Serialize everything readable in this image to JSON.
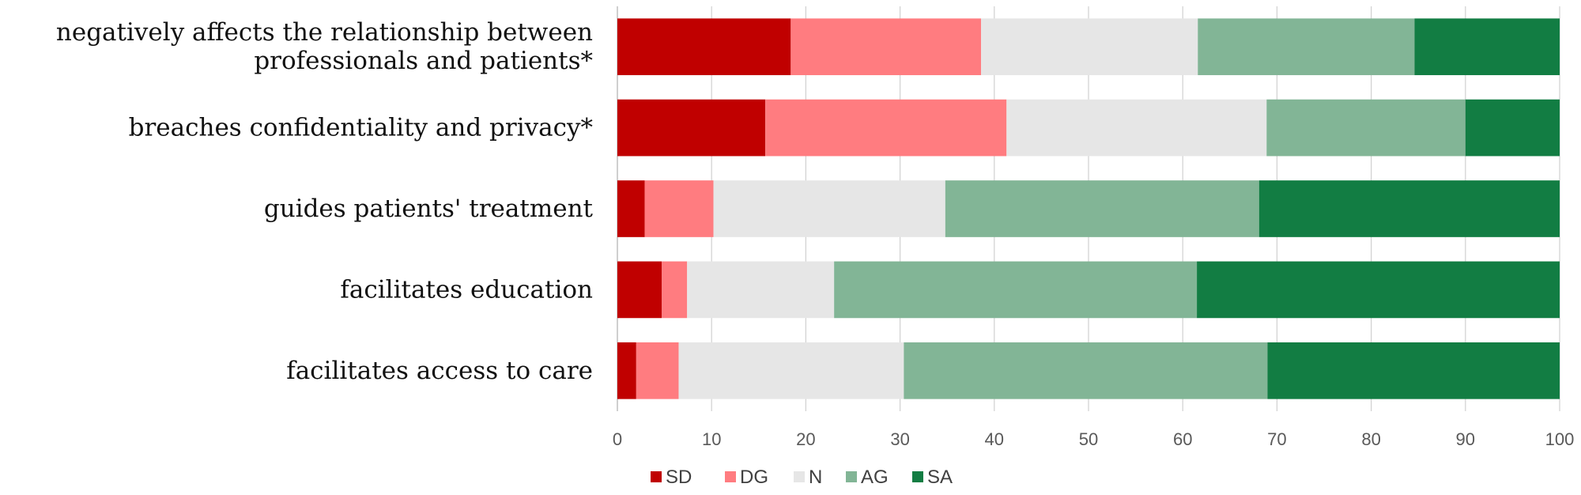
{
  "chart_data": {
    "type": "bar",
    "orientation": "horizontal",
    "stacked": true,
    "categories": [
      [
        "negatively affects the relationship between",
        "professionals and patients*"
      ],
      [
        "breaches confidentiality and privacy*"
      ],
      [
        "guides patients' treatment"
      ],
      [
        "facilitates education"
      ],
      [
        "facilitates access to care"
      ]
    ],
    "series": [
      {
        "name": "SD",
        "color": "#c00000",
        "values": [
          18.4,
          15.7,
          2.9,
          4.7,
          2.0
        ]
      },
      {
        "name": "DG",
        "color": "#ff7c80",
        "values": [
          20.2,
          25.6,
          7.3,
          2.7,
          4.5
        ]
      },
      {
        "name": "N",
        "color": "#e6e6e6",
        "values": [
          23.0,
          27.6,
          24.6,
          15.6,
          23.9
        ]
      },
      {
        "name": "AG",
        "color": "#82b596",
        "values": [
          23.0,
          21.1,
          33.3,
          38.5,
          38.6
        ]
      },
      {
        "name": "SA",
        "color": "#127d43",
        "values": [
          15.4,
          10.0,
          31.9,
          38.5,
          31.0
        ]
      }
    ],
    "xlim": [
      0,
      100
    ],
    "xticks": [
      "0",
      "10",
      "20",
      "30",
      "40",
      "50",
      "60",
      "70",
      "80",
      "90",
      "100"
    ],
    "grid": true,
    "legend": "bottom",
    "title": "",
    "xlabel": "",
    "ylabel": ""
  }
}
